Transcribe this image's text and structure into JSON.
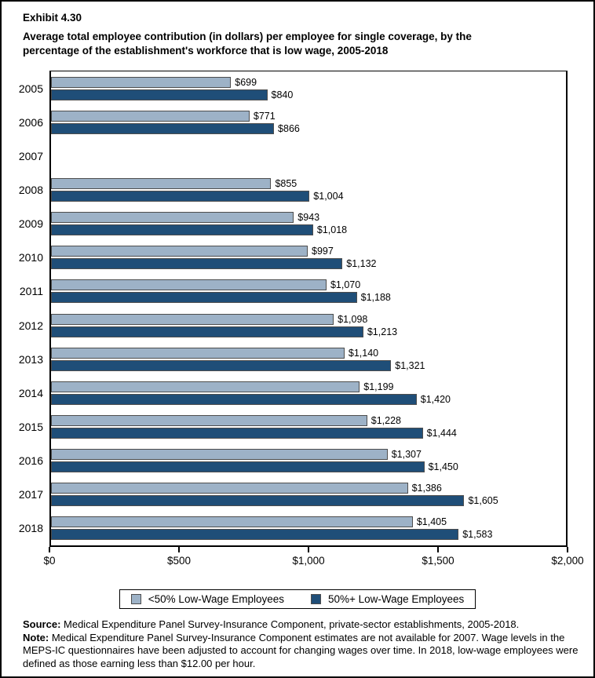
{
  "header": {
    "exhibit": "Exhibit 4.30",
    "title_line1": "Average total employee contribution (in dollars) per employee for single coverage, by the",
    "title_line2": "percentage of the establishment's workforce that is low wage, 2005-2018"
  },
  "chart_data": {
    "type": "bar",
    "orientation": "horizontal",
    "title": "Average total employee contribution (in dollars) per employee for single coverage, by the percentage of the establishment's workforce that is low wage, 2005-2018",
    "categories": [
      "2005",
      "2006",
      "2007",
      "2008",
      "2009",
      "2010",
      "2011",
      "2012",
      "2013",
      "2014",
      "2015",
      "2016",
      "2017",
      "2018"
    ],
    "series": [
      {
        "name": "<50% Low-Wage Employees",
        "color": "#9DB2C7",
        "values": [
          699,
          771,
          null,
          855,
          943,
          997,
          1070,
          1098,
          1140,
          1199,
          1228,
          1307,
          1386,
          1405
        ],
        "labels": [
          "$699",
          "$771",
          null,
          "$855",
          "$943",
          "$997",
          "$1,070",
          "$1,098",
          "$1,140",
          "$1,199",
          "$1,228",
          "$1,307",
          "$1,386",
          "$1,405"
        ]
      },
      {
        "name": "50%+ Low-Wage Employees",
        "color": "#1F4E78",
        "values": [
          840,
          866,
          null,
          1004,
          1018,
          1132,
          1188,
          1213,
          1321,
          1420,
          1444,
          1450,
          1605,
          1583
        ],
        "labels": [
          "$840",
          "$866",
          null,
          "$1,004",
          "$1,018",
          "$1,132",
          "$1,188",
          "$1,213",
          "$1,321",
          "$1,420",
          "$1,444",
          "$1,450",
          "$1,605",
          "$1,583"
        ]
      }
    ],
    "xlim": [
      0,
      2000
    ],
    "x_tick_values": [
      0,
      500,
      1000,
      1500,
      2000
    ],
    "x_tick_labels": [
      "$0",
      "$500",
      "$1,000",
      "$1,500",
      "$2,000"
    ],
    "grid": false,
    "legend_position": "bottom",
    "missing_note": "estimates not available for 2007"
  },
  "legend": {
    "items": [
      {
        "label": "<50% Low-Wage Employees",
        "color": "#9DB2C7"
      },
      {
        "label": "50%+ Low-Wage Employees",
        "color": "#1F4E78"
      }
    ]
  },
  "footnotes": {
    "source_label": "Source:",
    "source_text": " Medical Expenditure Panel Survey-Insurance Component, private-sector establishments, 2005-2018.",
    "note_label": "Note:",
    "note_text": " Medical Expenditure Panel Survey-Insurance Component estimates are not available for 2007. Wage levels in the MEPS-IC questionnaires have been adjusted to account for changing wages over time. In 2018, low-wage employees were defined as those earning less than $12.00 per hour."
  }
}
